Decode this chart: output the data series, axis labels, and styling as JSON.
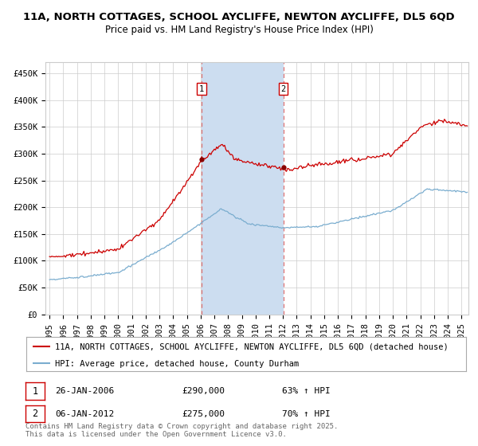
{
  "title_line1": "11A, NORTH COTTAGES, SCHOOL AYCLIFFE, NEWTON AYCLIFFE, DL5 6QD",
  "title_line2": "Price paid vs. HM Land Registry's House Price Index (HPI)",
  "ylim": [
    0,
    470000
  ],
  "xlim_start": 1994.7,
  "xlim_end": 2025.5,
  "yticks": [
    0,
    50000,
    100000,
    150000,
    200000,
    250000,
    300000,
    350000,
    400000,
    450000
  ],
  "ytick_labels": [
    "£0",
    "£50K",
    "£100K",
    "£150K",
    "£200K",
    "£250K",
    "£300K",
    "£350K",
    "£400K",
    "£450K"
  ],
  "xtick_years": [
    1995,
    1996,
    1997,
    1998,
    1999,
    2000,
    2001,
    2002,
    2003,
    2004,
    2005,
    2006,
    2007,
    2008,
    2009,
    2010,
    2011,
    2012,
    2013,
    2014,
    2015,
    2016,
    2017,
    2018,
    2019,
    2020,
    2021,
    2022,
    2023,
    2024,
    2025
  ],
  "red_line_color": "#cc0000",
  "blue_line_color": "#7aadcf",
  "highlight_color": "#ccddf0",
  "dashed_line_color": "#dd6666",
  "sale1_x": 2006.07,
  "sale1_y": 290000,
  "sale2_x": 2012.02,
  "sale2_y": 275000,
  "legend_red_label": "11A, NORTH COTTAGES, SCHOOL AYCLIFFE, NEWTON AYCLIFFE, DL5 6QD (detached house)",
  "legend_blue_label": "HPI: Average price, detached house, County Durham",
  "annotation1_date": "26-JAN-2006",
  "annotation1_price": "£290,000",
  "annotation1_hpi": "63% ↑ HPI",
  "annotation2_date": "06-JAN-2012",
  "annotation2_price": "£275,000",
  "annotation2_hpi": "70% ↑ HPI",
  "footer": "Contains HM Land Registry data © Crown copyright and database right 2025.\nThis data is licensed under the Open Government Licence v3.0.",
  "background_color": "#ffffff",
  "grid_color": "#cccccc",
  "title_fontsize": 9.5,
  "subtitle_fontsize": 8.5,
  "tick_fontsize": 7.5,
  "legend_fontsize": 7.5,
  "annotation_fontsize": 8,
  "footer_fontsize": 6.5
}
